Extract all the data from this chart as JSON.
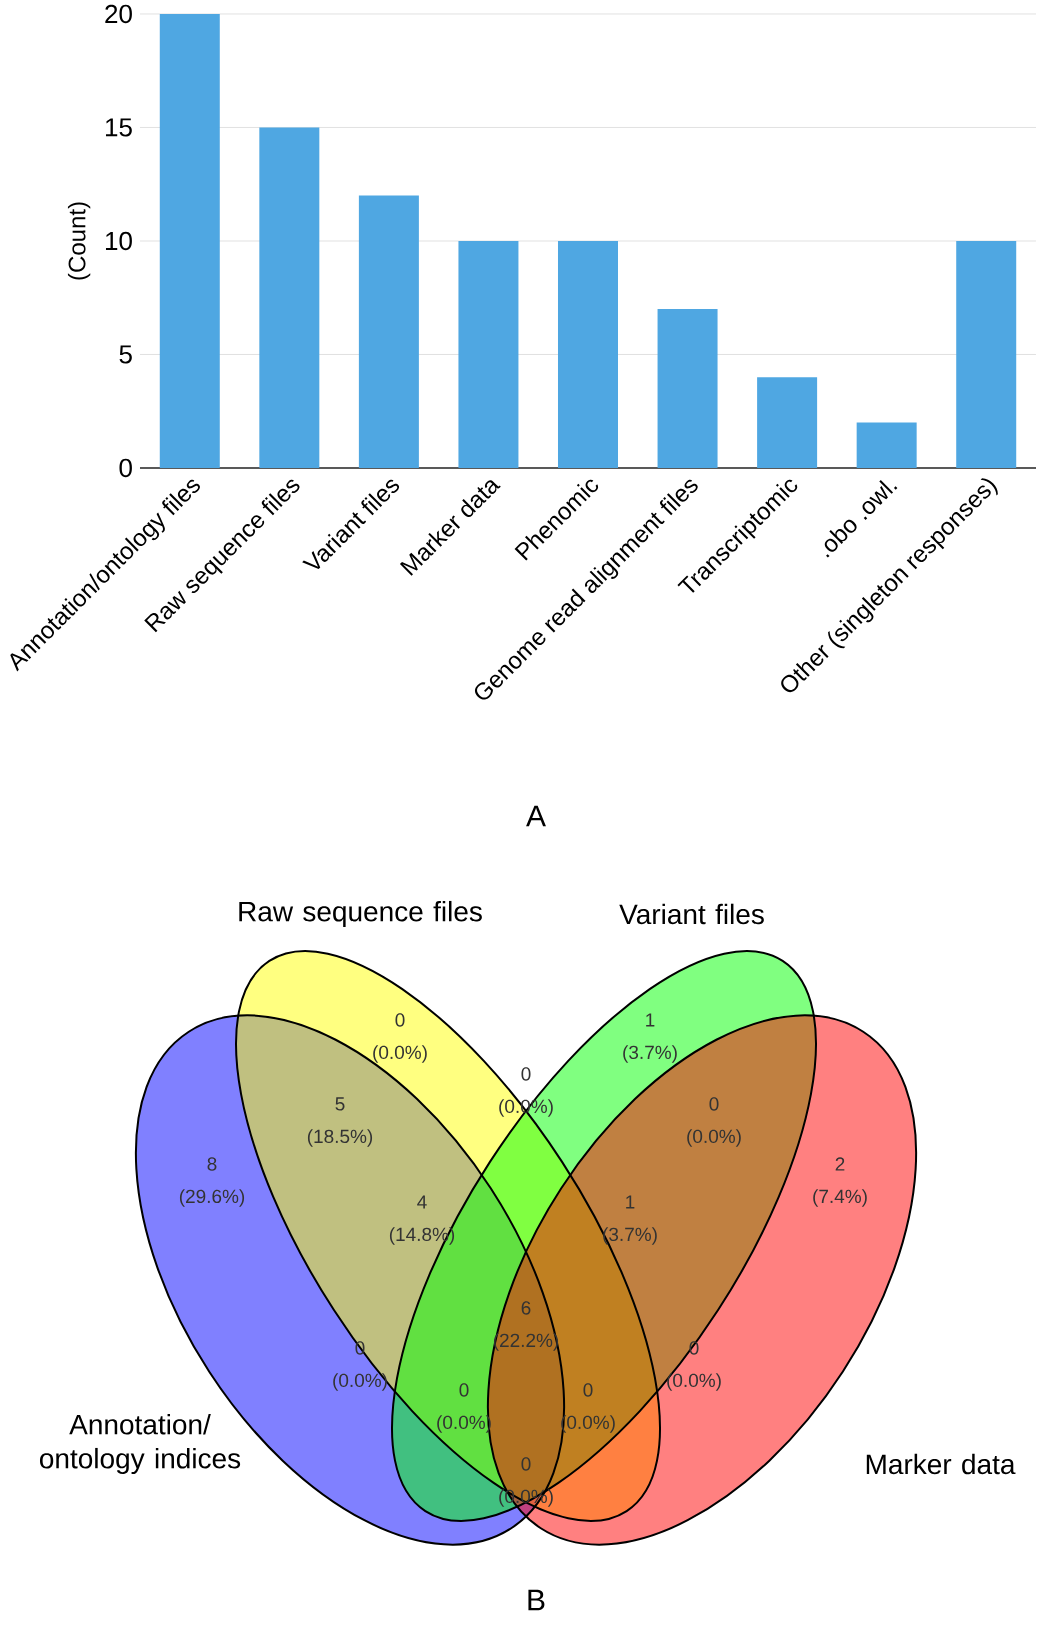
{
  "chart_data": [
    {
      "type": "bar",
      "ylabel": "(Count)",
      "categories": [
        "Annotation/ontology files",
        "Raw sequence files",
        "Variant files",
        "Marker data",
        "Phenomic",
        "Genome read alignment files",
        "Transcriptomic",
        ".obo .owl.",
        "Other (singleton responses)"
      ],
      "values": [
        20,
        15,
        12,
        10,
        10,
        7,
        4,
        2,
        10
      ],
      "color": "#4fa7e2",
      "ylim": [
        0,
        20
      ],
      "yticks": [
        0,
        5,
        10,
        15,
        20
      ],
      "grid": "y",
      "annotations": [
        "A"
      ]
    },
    {
      "type": "other",
      "categories": [
        "Annotation/ ontology indices",
        "Raw sequence files",
        "Variant files",
        "Marker data"
      ],
      "colors": [
        "#8080ff",
        "#ffff80",
        "#80ff80",
        "#ff8080"
      ],
      "annotations": [
        "8",
        "(29.6%)",
        "0",
        "(0.0%)",
        "1",
        "(3.7%)",
        "2",
        "(7.4%)",
        "5",
        "(18.5%)",
        "0",
        "(0.0%)",
        "0",
        "(0.0%)",
        "4",
        "(14.8%)",
        "1",
        "(3.7%)",
        "6",
        "(22.2%)",
        "0",
        "(0.0%)",
        "0",
        "(0.0%)",
        "0",
        "(0.0%)",
        "0",
        "(0.0%)",
        "0",
        "(0.0%)",
        "B"
      ]
    }
  ]
}
